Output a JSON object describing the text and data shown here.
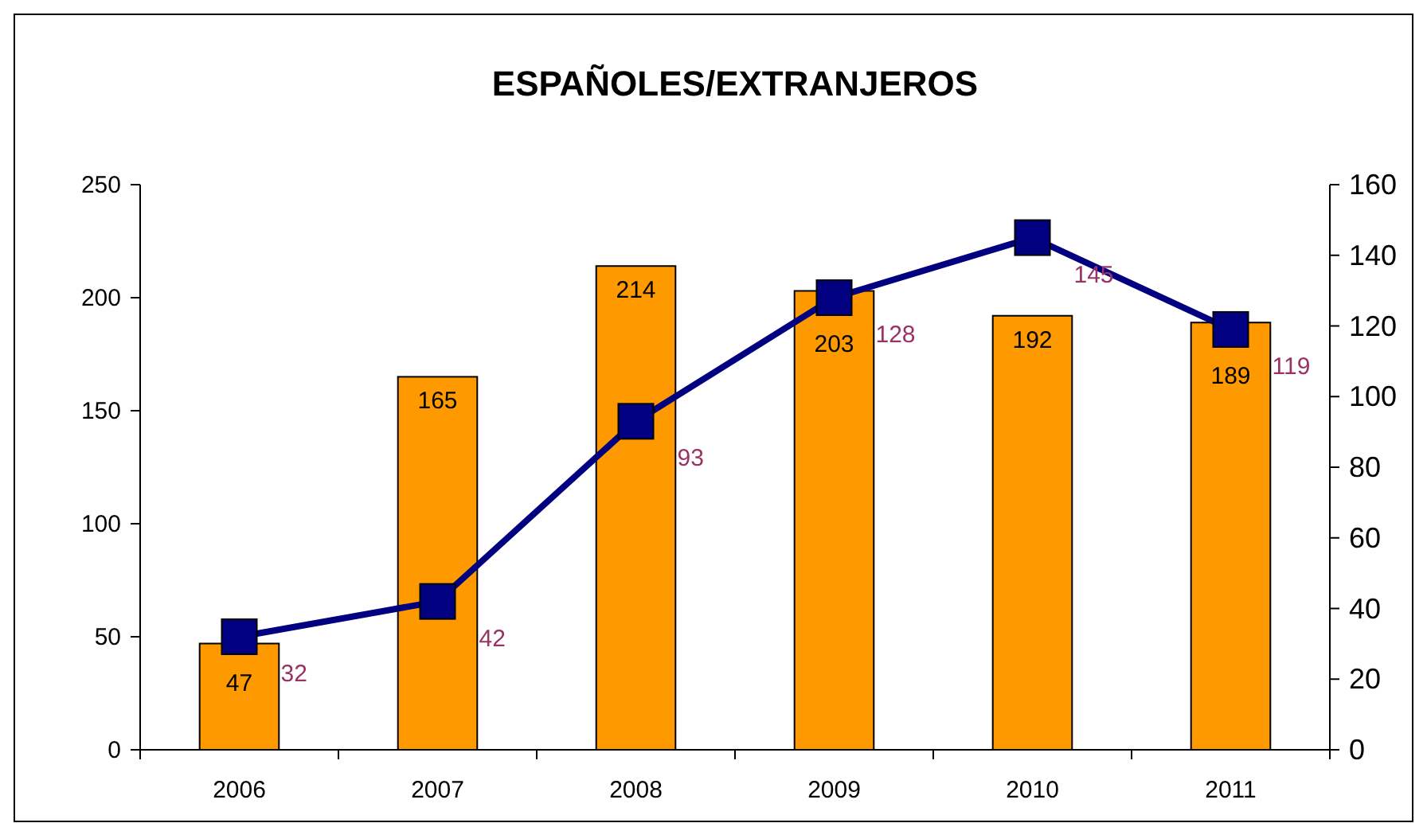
{
  "chart_data": {
    "type": "bar",
    "title": "ESPAÑOLES/EXTRANJEROS",
    "categories": [
      "2006",
      "2007",
      "2008",
      "2009",
      "2010",
      "2011"
    ],
    "series": [
      {
        "color": "#ff9900",
        "values": [
          47,
          165,
          214,
          203,
          192,
          189
        ]
      },
      {
        "type": "line",
        "axis": "y2",
        "color": "#000080",
        "values": [
          32,
          42,
          93,
          128,
          145,
          119
        ]
      }
    ],
    "ylim": [
      0,
      250
    ],
    "yticks": [
      0,
      50,
      100,
      150,
      200,
      250
    ],
    "y2lim": [
      0,
      160
    ],
    "y2ticks": [
      0,
      20,
      40,
      60,
      80,
      100,
      120,
      140,
      160
    ],
    "data_labels": true,
    "marker": "square",
    "line_style": "solid",
    "grid": false
  }
}
